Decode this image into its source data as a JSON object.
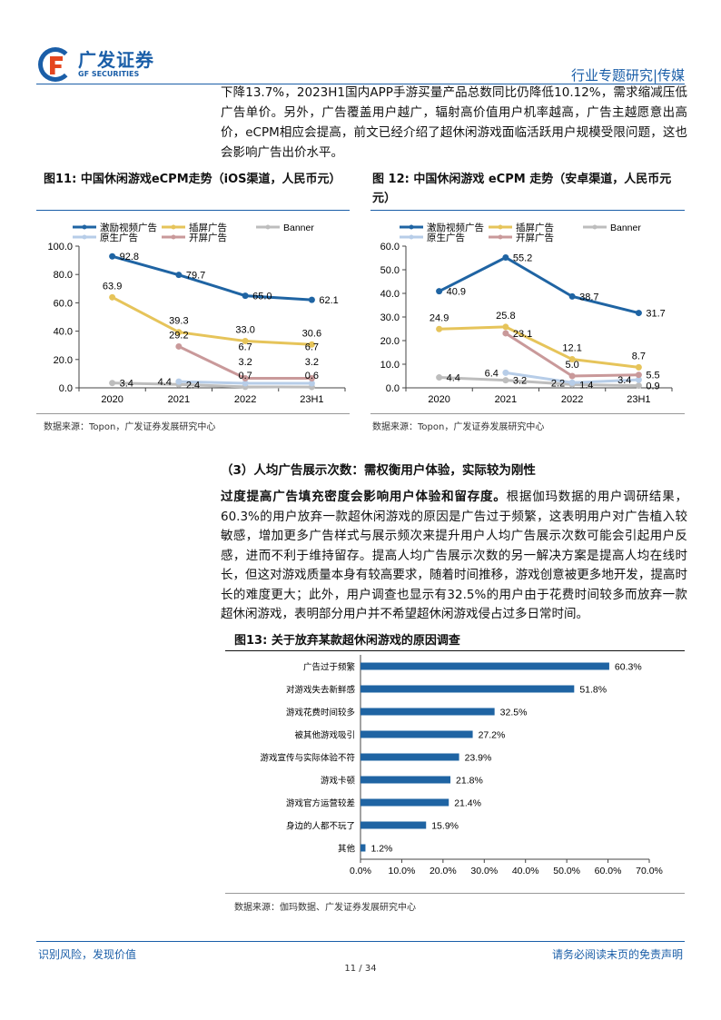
{
  "header": {
    "logo_cn": "广发证券",
    "logo_en": "GF SECURITIES",
    "section": "行业专题研究|传媒"
  },
  "intro_text": "下降13.7%，2023H1国内APP手游买量产品总数同比仍降低10.12%，需求缩减压低广告单价。另外，广告覆盖用户越广，辐射高价值用户机率越高，广告主越愿意出高价，eCPM相应会提高，前文已经介绍了超休闲游戏面临活跃用户规模受限问题，这也会影响广告出价水平。",
  "fig11": {
    "title": "图11: 中国休闲游戏eCPM走势（iOS渠道，人民币元）",
    "source": "数据来源：Topon，广发证券发展研究中心"
  },
  "fig12": {
    "title": "图 12: 中国休闲游戏 eCPM 走势（安卓渠道，人民币元元）",
    "source": "数据来源：Topon，广发证券发展研究中心"
  },
  "section3_title": "（3）人均广告展示次数：需权衡用户体验，实际较为刚性",
  "body_bold": "过度提高广告填充密度会影响用户体验和留存度。",
  "body_text": "根据伽玛数据的用户调研结果，60.3%的用户放弃一款超休闲游戏的原因是广告过于频繁，这表明用户对广告植入较敏感，增加更多广告样式与展示频次来提升用户人均广告展示次数可能会引起用户反感，进而不利于维持留存。提高人均广告展示次数的另一解决方案是提高人均在线时长，但这对游戏质量本身有较高要求，随着时间推移，游戏创意被更多地开发，提高时长的难度更大；此外，用户调查也显示有32.5%的用户由于花费时间较多而放弃一款超休闲游戏，表明部分用户并不希望超休闲游戏侵占过多日常时间。",
  "fig13": {
    "title": "图13: 关于放弃某款超休闲游戏的原因调查",
    "source": "数据来源：伽玛数据、广发证券发展研究中心"
  },
  "footer": {
    "left": "识别风险，发现价值",
    "page": "11 / 34",
    "right": "请务必阅读末页的免责声明"
  },
  "chart_data": [
    {
      "type": "line",
      "categories": [
        "2020",
        "2021",
        "2022",
        "23H1"
      ],
      "ylim": [
        0,
        100
      ],
      "yticks": [
        "0.0",
        "20.0",
        "40.0",
        "60.0",
        "80.0",
        "100.0"
      ],
      "legend": "top",
      "series": [
        {
          "name": "激励视频广告",
          "color": "#1f64a3",
          "values": [
            92.8,
            79.7,
            65.0,
            62.1
          ]
        },
        {
          "name": "插屏广告",
          "color": "#e6c45a",
          "values": [
            63.9,
            39.3,
            33.0,
            30.6
          ]
        },
        {
          "name": "Banner",
          "color": "#bdbdbd",
          "values": [
            3.4,
            2.4,
            0.7,
            0.6
          ]
        },
        {
          "name": "原生广告",
          "color": "#b7cde8",
          "values": [
            null,
            4.4,
            3.2,
            3.2
          ]
        },
        {
          "name": "开屏广告",
          "color": "#c9999a",
          "values": [
            null,
            29.2,
            6.7,
            6.7
          ]
        }
      ]
    },
    {
      "type": "line",
      "categories": [
        "2020",
        "2021",
        "2022",
        "23H1"
      ],
      "ylim": [
        0,
        60
      ],
      "yticks": [
        "0.0",
        "10.0",
        "20.0",
        "30.0",
        "40.0",
        "50.0",
        "60.0"
      ],
      "legend": "top",
      "series": [
        {
          "name": "激励视频广告",
          "color": "#1f64a3",
          "values": [
            40.9,
            55.2,
            38.7,
            31.7
          ]
        },
        {
          "name": "插屏广告",
          "color": "#e6c45a",
          "values": [
            24.9,
            25.8,
            12.1,
            8.7
          ]
        },
        {
          "name": "Banner",
          "color": "#bdbdbd",
          "values": [
            4.4,
            3.2,
            1.4,
            0.9
          ]
        },
        {
          "name": "原生广告",
          "color": "#b7cde8",
          "values": [
            null,
            6.4,
            2.2,
            3.4
          ]
        },
        {
          "name": "开屏广告",
          "color": "#c9999a",
          "values": [
            null,
            23.1,
            5.0,
            5.5
          ]
        }
      ]
    },
    {
      "type": "bar",
      "orientation": "horizontal",
      "color": "#1f64a3",
      "xlim": [
        0,
        70
      ],
      "xticks": [
        "0.0%",
        "10.0%",
        "20.0%",
        "30.0%",
        "40.0%",
        "50.0%",
        "60.0%",
        "70.0%"
      ],
      "categories": [
        "广告过于频繁",
        "对游戏失去新鲜感",
        "游戏花费时间较多",
        "被其他游戏吸引",
        "游戏宣传与实际体验不符",
        "游戏卡顿",
        "游戏官方运营较差",
        "身边的人都不玩了",
        "其他"
      ],
      "values": [
        60.3,
        51.8,
        32.5,
        27.2,
        23.9,
        21.8,
        21.4,
        15.9,
        1.2
      ],
      "labels": [
        "60.3%",
        "51.8%",
        "32.5%",
        "27.2%",
        "23.9%",
        "21.8%",
        "21.4%",
        "15.9%",
        "1.2%"
      ]
    }
  ]
}
